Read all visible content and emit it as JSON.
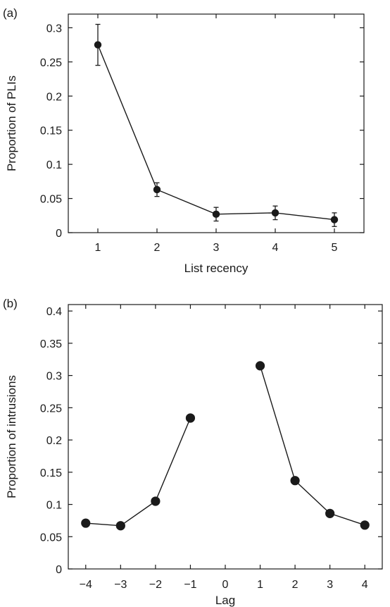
{
  "chart_data": [
    {
      "panel_label": "(a)",
      "type": "line",
      "xlabel": "List recency",
      "ylabel": "Proportion of PLIs",
      "xlim": [
        0.5,
        5.5
      ],
      "ylim": [
        0,
        0.32
      ],
      "xticks": [
        1,
        2,
        3,
        4,
        5
      ],
      "xtick_labels": [
        "1",
        "2",
        "3",
        "4",
        "5"
      ],
      "yticks": [
        0,
        0.05,
        0.1,
        0.15,
        0.2,
        0.25,
        0.3
      ],
      "ytick_labels": [
        "0",
        "0.05",
        "0.1",
        "0.15",
        "0.2",
        "0.25",
        "0.3"
      ],
      "grid": false,
      "marker": "filled-circle",
      "color": "#1a1a1a",
      "series": [
        {
          "segments": [
            [
              1,
              2,
              3,
              4,
              5
            ]
          ],
          "x": [
            1,
            2,
            3,
            4,
            5
          ],
          "y": [
            0.275,
            0.063,
            0.027,
            0.029,
            0.019
          ],
          "error": [
            0.03,
            0.01,
            0.01,
            0.01,
            0.01
          ]
        }
      ]
    },
    {
      "panel_label": "(b)",
      "type": "line",
      "xlabel": "Lag",
      "ylabel": "Proportion of intrusions",
      "xlim": [
        -4.5,
        4.5
      ],
      "ylim": [
        0,
        0.41
      ],
      "xticks": [
        -4,
        -3,
        -2,
        -1,
        0,
        1,
        2,
        3,
        4
      ],
      "xtick_labels": [
        "−4",
        "−3",
        "−2",
        "−1",
        "0",
        "1",
        "2",
        "3",
        "4"
      ],
      "yticks": [
        0,
        0.05,
        0.1,
        0.15,
        0.2,
        0.25,
        0.3,
        0.35,
        0.4
      ],
      "ytick_labels": [
        "0",
        "0.05",
        "0.1",
        "0.15",
        "0.2",
        "0.25",
        "0.3",
        "0.35",
        "0.4"
      ],
      "grid": false,
      "marker": "filled-circle",
      "color": "#1a1a1a",
      "series": [
        {
          "segments": [
            [
              -4,
              -3,
              -2,
              -1
            ],
            [
              1,
              2,
              3,
              4
            ]
          ],
          "x": [
            -4,
            -3,
            -2,
            -1,
            1,
            2,
            3,
            4
          ],
          "y": [
            0.071,
            0.067,
            0.105,
            0.234,
            0.315,
            0.137,
            0.086,
            0.068
          ]
        }
      ]
    }
  ]
}
